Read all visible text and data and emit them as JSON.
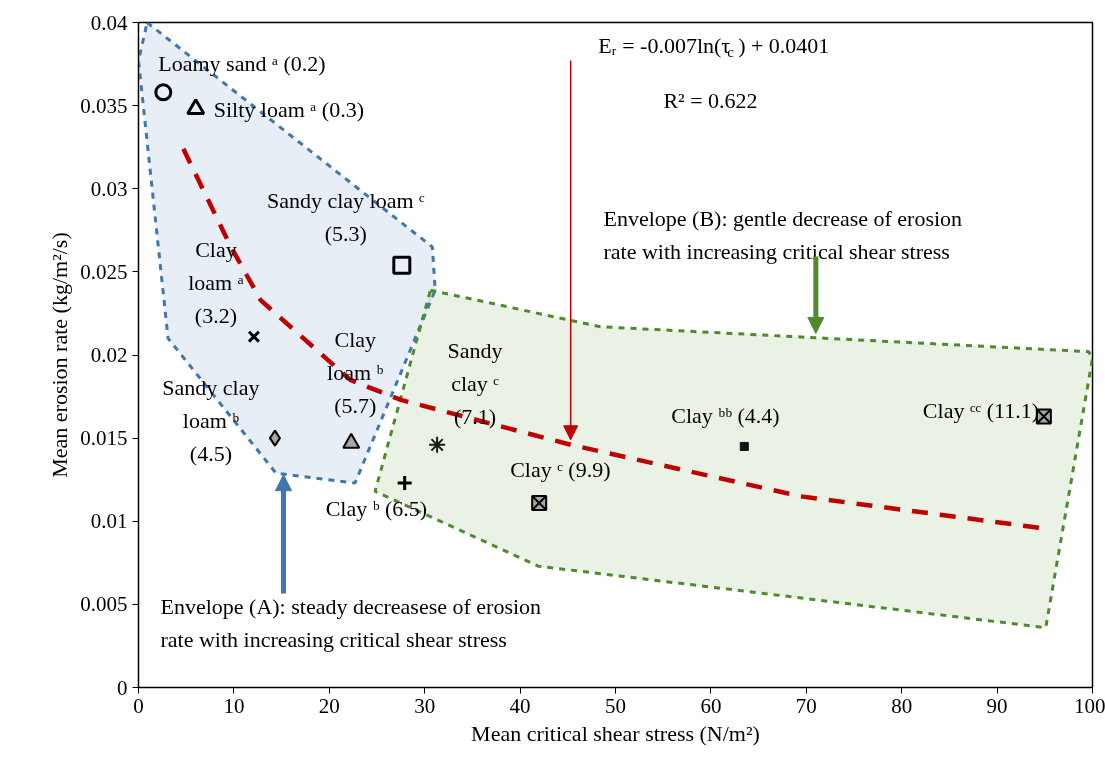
{
  "chart_data": {
    "type": "scatter",
    "xlabel": "Mean critical shear stress (N/m²)",
    "ylabel": "Mean erosion rate (kg/m²/s)",
    "xlim": [
      0,
      100
    ],
    "ylim": [
      0,
      0.04
    ],
    "xticks": [
      0,
      10,
      20,
      30,
      40,
      50,
      60,
      70,
      80,
      90,
      100
    ],
    "yticks": [
      0,
      0.005,
      0.01,
      0.015,
      0.02,
      0.025,
      0.03,
      0.035,
      0.04
    ],
    "grid": false,
    "series": [
      {
        "type": "area",
        "color": "#3f77b0",
        "line_style": "dashed",
        "x": [
          0.9,
          30.8,
          31.1,
          22.7,
          14.4,
          3.1,
          0,
          0.9
        ],
        "values": [
          0.04,
          0.0265,
          0.0239,
          0.0123,
          0.0129,
          0.021,
          0.0377,
          0.04
        ]
      },
      {
        "type": "area",
        "color": "#4f8a2c",
        "line_style": "dashed",
        "x": [
          30.6,
          48.4,
          99.6,
          100,
          95.1,
          41.9,
          24.8,
          30.6
        ],
        "values": [
          0.0239,
          0.0217,
          0.0202,
          0.0198,
          0.0036,
          0.0073,
          0.0118,
          0.0239
        ]
      },
      {
        "type": "line",
        "color": "#c00000",
        "line_style": "dashed",
        "x": [
          4.7,
          9.6,
          12.8,
          22.2,
          27.5,
          45.3,
          69.4,
          94.5
        ],
        "values": [
          0.0324,
          0.0266,
          0.0233,
          0.0185,
          0.0173,
          0.0146,
          0.0115,
          0.0096
        ]
      },
      {
        "type": "scatter",
        "marker": "circle",
        "color": "#000000",
        "x": [
          2.6
        ],
        "values": [
          0.0358
        ]
      },
      {
        "type": "scatter",
        "marker": "triangle",
        "color": "#000000",
        "x": [
          6.0
        ],
        "values": [
          0.0348
        ]
      },
      {
        "type": "scatter",
        "marker": "x",
        "color": "#000000",
        "x": [
          12.1
        ],
        "values": [
          0.0211
        ]
      },
      {
        "type": "scatter",
        "marker": "square",
        "color": "#000000",
        "x": [
          27.6
        ],
        "values": [
          0.0254
        ]
      },
      {
        "type": "scatter",
        "marker": "diamond",
        "color": "#a6a6a6",
        "x": [
          14.3
        ],
        "values": [
          0.015
        ]
      },
      {
        "type": "scatter",
        "marker": "triangle",
        "color": "#a6a6a6",
        "x": [
          22.3
        ],
        "values": [
          0.0147
        ]
      },
      {
        "type": "scatter",
        "marker": "cross",
        "color": "#000000",
        "x": [
          27.9
        ],
        "values": [
          0.0123
        ]
      },
      {
        "type": "scatter",
        "marker": "cross",
        "color": "#1a1a1a",
        "x": [
          31.3
        ],
        "values": [
          0.0146
        ]
      },
      {
        "type": "scatter",
        "marker": "cross",
        "color": "#a6a6a6",
        "x": [
          42.0
        ],
        "values": [
          0.0111
        ]
      },
      {
        "type": "scatter",
        "marker": "square",
        "color": "#111111",
        "x": [
          63.5
        ],
        "values": [
          0.0145
        ]
      },
      {
        "type": "scatter",
        "marker": "cross",
        "color": "#a6a6a6",
        "x": [
          94.9
        ],
        "values": [
          0.0163
        ]
      }
    ],
    "annotations": [
      {
        "text": "Loamy sand ᵃ (0.2)",
        "x": 2.6,
        "y": 0.0358
      },
      {
        "text": "Silty loam ᵃ (0.3)",
        "x": 6.0,
        "y": 0.0348
      },
      {
        "text": "Clay\nloam ᵃ\n(3.2)",
        "x": 12.1,
        "y": 0.0211
      },
      {
        "text": "Sandy clay loam ᶜ\n(5.3)",
        "x": 27.6,
        "y": 0.0254
      },
      {
        "text": "Clay\nloam ᵇ\n(5.7)",
        "x": 22.3,
        "y": 0.0147
      },
      {
        "text": "Sandy clay\nloam ᵇ\n(4.5)",
        "x": 14.3,
        "y": 0.015
      },
      {
        "text": "Sandy\nclay ᶜ\n(7.1)",
        "x": 31.3,
        "y": 0.0146
      },
      {
        "text": "Clay ᵇ (6.5)",
        "x": 27.9,
        "y": 0.0123
      },
      {
        "text": "Clay ᶜ (9.9)",
        "x": 42.0,
        "y": 0.0111
      },
      {
        "text": "Clay ᵇᵇ (4.4)",
        "x": 63.5,
        "y": 0.0145
      },
      {
        "text": "Clay ᶜᶜ (11.1)",
        "x": 94.9,
        "y": 0.0163
      },
      {
        "text": "Eᵣ = -0.007ln(τ$_{c}$) + 0.0401",
        "x": 45.3,
        "y": 0.0149
      },
      "R² = 0.622",
      {
        "text": "Envelope (B): gentle decrease of erosion\nrate with increasing critical shear stress",
        "x": 71.0,
        "y": 0.0213
      },
      {
        "text": "Envelope (A): steady decreasese of erosion\nrate with increasing critical shear stress",
        "x": 15.2,
        "y": 0.0128
      }
    ]
  }
}
